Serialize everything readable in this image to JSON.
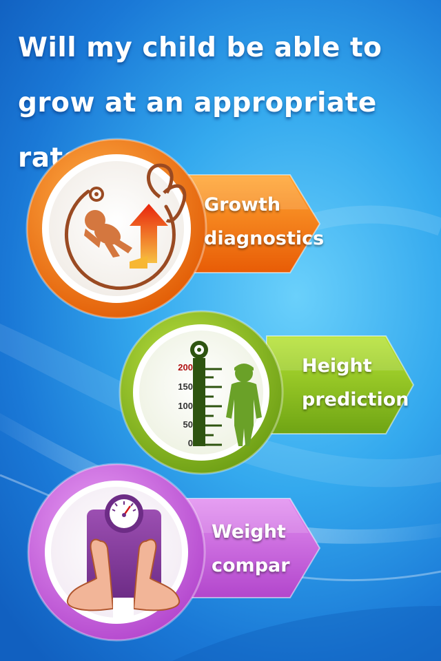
{
  "headline": {
    "line1": "Will my child be able to",
    "line2": "grow at an appropriate rate?"
  },
  "colors": {
    "background": "#2a98e6",
    "growth_accent": "#f27a10",
    "height_accent": "#8fc51c",
    "weight_accent": "#c45ed8",
    "icon_brown": "#9a4a22",
    "ruler_green": "#2e5410"
  },
  "features": [
    {
      "id": "growth-diagnostics",
      "icon": "baby-growth-stethoscope-icon",
      "label_line1": "Growth",
      "label_line2": "diagnostics"
    },
    {
      "id": "height-prediction",
      "icon": "height-ruler-child-icon",
      "label_line1": "Height",
      "label_line2": "prediction",
      "ruler_ticks": [
        "200",
        "150",
        "100",
        "50",
        "0"
      ]
    },
    {
      "id": "weight-compar",
      "icon": "weight-scale-feet-icon",
      "label_line1": "Weight",
      "label_line2": "compar"
    }
  ]
}
